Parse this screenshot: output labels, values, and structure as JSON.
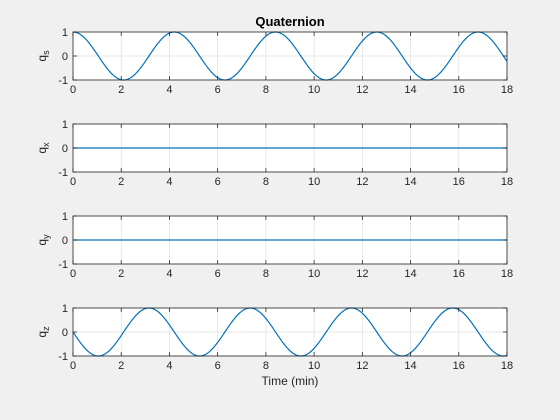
{
  "figure": {
    "background": "#f0f0f0",
    "axes_background": "#ffffff",
    "line_color": "#0072bd",
    "grid": true
  },
  "chart_data": [
    {
      "type": "line",
      "title": "Quaternion",
      "ylabel_base": "q",
      "ylabel_sub": "s",
      "xlabel": "",
      "xlim": [
        0,
        18
      ],
      "ylim": [
        -1,
        1
      ],
      "xticks": [
        0,
        2,
        4,
        6,
        8,
        10,
        12,
        14,
        16,
        18
      ],
      "yticks": [
        -1,
        0,
        1
      ],
      "series": [
        {
          "function": "cos",
          "amplitude": 1,
          "period_min": 4.2,
          "x_start": 0,
          "x_end": 18
        }
      ]
    },
    {
      "type": "line",
      "title": "",
      "ylabel_base": "q",
      "ylabel_sub": "x",
      "xlabel": "",
      "xlim": [
        0,
        18
      ],
      "ylim": [
        -1,
        1
      ],
      "xticks": [
        0,
        2,
        4,
        6,
        8,
        10,
        12,
        14,
        16,
        18
      ],
      "yticks": [
        -1,
        0,
        1
      ],
      "series": [
        {
          "function": "constant",
          "value": 0,
          "x_start": 0,
          "x_end": 18
        }
      ]
    },
    {
      "type": "line",
      "title": "",
      "ylabel_base": "q",
      "ylabel_sub": "y",
      "xlabel": "",
      "xlim": [
        0,
        18
      ],
      "ylim": [
        -1,
        1
      ],
      "xticks": [
        0,
        2,
        4,
        6,
        8,
        10,
        12,
        14,
        16,
        18
      ],
      "yticks": [
        -1,
        0,
        1
      ],
      "series": [
        {
          "function": "constant",
          "value": 0,
          "x_start": 0,
          "x_end": 18
        }
      ]
    },
    {
      "type": "line",
      "title": "",
      "ylabel_base": "q",
      "ylabel_sub": "z",
      "xlabel": "Time (min)",
      "xlim": [
        0,
        18
      ],
      "ylim": [
        -1,
        1
      ],
      "xticks": [
        0,
        2,
        4,
        6,
        8,
        10,
        12,
        14,
        16,
        18
      ],
      "yticks": [
        -1,
        0,
        1
      ],
      "series": [
        {
          "function": "neg_sin",
          "amplitude": 1,
          "period_min": 4.2,
          "x_start": 0,
          "x_end": 18
        }
      ]
    }
  ]
}
